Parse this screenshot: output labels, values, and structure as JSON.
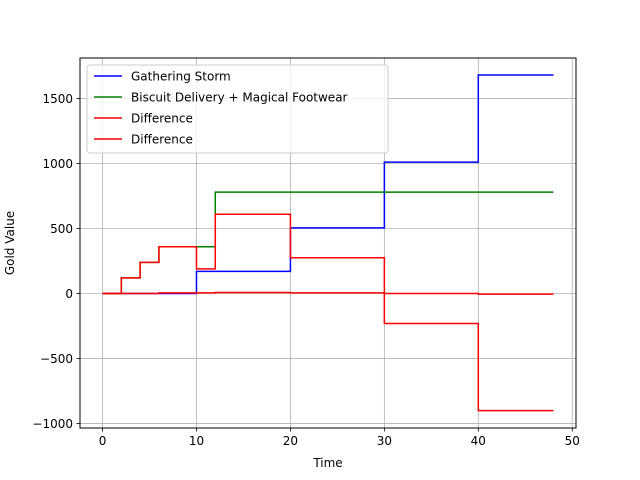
{
  "chart_data": {
    "type": "line",
    "step": "post",
    "title": "",
    "xlabel": "Time",
    "ylabel": "Gold Value",
    "xlim": [
      -2.4,
      50.4
    ],
    "ylim": [
      -1034,
      1811
    ],
    "xticks": [
      0,
      10,
      20,
      30,
      40,
      50
    ],
    "yticks": [
      -1000,
      -500,
      0,
      500,
      1000,
      1500
    ],
    "xtick_labels": [
      "0",
      "10",
      "20",
      "30",
      "40",
      "50"
    ],
    "ytick_labels": [
      "−1000",
      "−500",
      "0",
      "500",
      "1000",
      "1500"
    ],
    "grid": true,
    "legend_position": "upper-left",
    "series": [
      {
        "name": "Gathering Storm",
        "color": "#0000ff",
        "x": [
          0,
          10,
          20,
          30,
          40,
          48
        ],
        "y": [
          0,
          170,
          505,
          1010,
          1680,
          1680
        ]
      },
      {
        "name": "Biscuit Delivery + Magical Footwear",
        "color": "#008000",
        "x": [
          0,
          2,
          4,
          6,
          12,
          48
        ],
        "y": [
          0,
          120,
          240,
          360,
          780,
          780
        ]
      },
      {
        "name": "Difference",
        "color": "#ff0000",
        "x": [
          0,
          2,
          4,
          6,
          10,
          12,
          20,
          30,
          40,
          48
        ],
        "y": [
          0,
          120,
          240,
          360,
          190,
          610,
          275,
          -230,
          -900,
          -900
        ]
      },
      {
        "name": "Difference",
        "color": "#ff0000",
        "x": [
          0,
          6,
          12,
          20,
          30,
          40,
          48
        ],
        "y": [
          0,
          5,
          8,
          5,
          0,
          -5,
          -5
        ]
      }
    ]
  }
}
